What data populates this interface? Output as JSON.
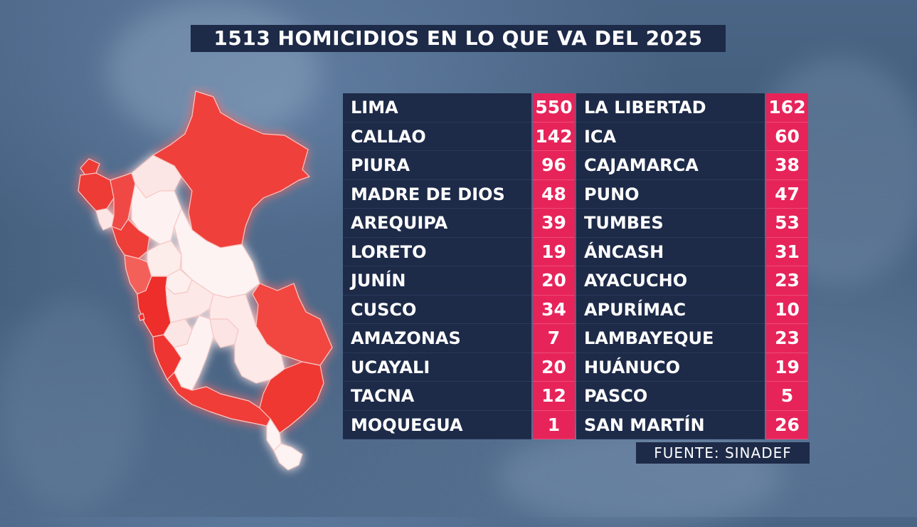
{
  "title": "1513 HOMICIDIOS EN LO QUE VA DEL 2025",
  "source": "FUENTE: SINADEF",
  "colors": {
    "panel": "#1d2a48",
    "value_accent": "#e6245a",
    "map_high": "#f0413a",
    "map_low": "#fbeceb"
  },
  "map": {
    "icon": "peru-regions-map"
  },
  "left_column": [
    {
      "region": "LIMA",
      "value": "550"
    },
    {
      "region": "CALLAO",
      "value": "142"
    },
    {
      "region": "PIURA",
      "value": "96"
    },
    {
      "region": "MADRE DE DIOS",
      "value": "48"
    },
    {
      "region": "AREQUIPA",
      "value": "39"
    },
    {
      "region": "LORETO",
      "value": "19"
    },
    {
      "region": "JUNÍN",
      "value": "20"
    },
    {
      "region": "CUSCO",
      "value": "34"
    },
    {
      "region": "AMAZONAS",
      "value": "7"
    },
    {
      "region": "UCAYALI",
      "value": "20"
    },
    {
      "region": "TACNA",
      "value": "12"
    },
    {
      "region": "MOQUEGUA",
      "value": "1"
    }
  ],
  "right_column": [
    {
      "region": "LA LIBERTAD",
      "value": "162"
    },
    {
      "region": "ICA",
      "value": "60"
    },
    {
      "region": "CAJAMARCA",
      "value": "38"
    },
    {
      "region": "PUNO",
      "value": "47"
    },
    {
      "region": "TUMBES",
      "value": "53"
    },
    {
      "region": "ÁNCASH",
      "value": "31"
    },
    {
      "region": "AYACUCHO",
      "value": "23"
    },
    {
      "region": "APURÍMAC",
      "value": "10"
    },
    {
      "region": "LAMBAYEQUE",
      "value": "23"
    },
    {
      "region": "HUÁNUCO",
      "value": "19"
    },
    {
      "region": "PASCO",
      "value": "5"
    },
    {
      "region": "SAN MARTÍN",
      "value": "26"
    }
  ]
}
